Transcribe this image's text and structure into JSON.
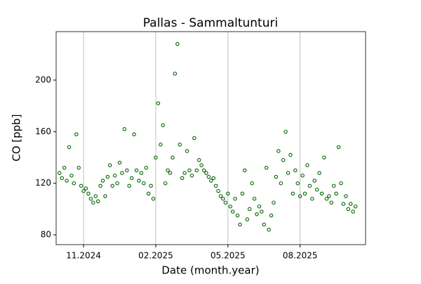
{
  "chart_data": {
    "type": "scatter",
    "title": "Pallas - Sammaltunturi",
    "x_label": "Date (month.year)",
    "y_label": "CO [ppb]",
    "series": [
      {
        "color": "#006400",
        "x": [
          -1.0,
          -0.9,
          -0.8,
          -0.7,
          -0.6,
          -0.5,
          -0.4,
          -0.3,
          -0.2,
          -0.1,
          0.0,
          0.1,
          0.2,
          0.3,
          0.4,
          0.5,
          0.6,
          0.7,
          0.8,
          0.9,
          1.0,
          1.1,
          1.2,
          1.3,
          1.4,
          1.5,
          1.6,
          1.7,
          1.8,
          1.9,
          2.0,
          2.1,
          2.2,
          2.3,
          2.4,
          2.5,
          2.6,
          2.7,
          2.8,
          2.9,
          3.0,
          3.1,
          3.2,
          3.3,
          3.4,
          3.5,
          3.6,
          3.7,
          3.8,
          3.9,
          4.0,
          4.1,
          4.2,
          4.3,
          4.4,
          4.5,
          4.6,
          4.7,
          4.8,
          4.9,
          5.0,
          5.1,
          5.2,
          5.3,
          5.4,
          5.5,
          5.6,
          5.7,
          5.8,
          5.9,
          6.0,
          6.1,
          6.2,
          6.3,
          6.4,
          6.5,
          6.6,
          6.7,
          6.8,
          6.9,
          7.0,
          7.1,
          7.2,
          7.3,
          7.4,
          7.5,
          7.6,
          7.7,
          7.8,
          7.9,
          8.0,
          8.1,
          8.2,
          8.3,
          8.4,
          8.5,
          8.6,
          8.7,
          8.8,
          8.9,
          9.0,
          9.1,
          9.2,
          9.3,
          9.4,
          9.5,
          9.6,
          9.7,
          9.8,
          9.9,
          10.0,
          10.1,
          10.2,
          10.3,
          10.4,
          10.5,
          10.6,
          10.7,
          10.8,
          10.9,
          11.0,
          11.1,
          11.2,
          11.3
        ],
        "values": [
          128,
          124,
          132,
          122,
          148,
          126,
          120,
          158,
          132,
          118,
          114,
          116,
          112,
          108,
          105,
          110,
          106,
          118,
          122,
          110,
          125,
          134,
          118,
          126,
          120,
          136,
          128,
          162,
          130,
          118,
          124,
          158,
          130,
          122,
          128,
          120,
          132,
          112,
          118,
          108,
          140,
          182,
          150,
          165,
          120,
          130,
          128,
          140,
          205,
          228,
          150,
          124,
          128,
          145,
          130,
          126,
          155,
          130,
          138,
          134,
          130,
          128,
          125,
          122,
          124,
          118,
          114,
          110,
          108,
          105,
          112,
          102,
          98,
          108,
          95,
          88,
          112,
          130,
          92,
          100,
          120,
          108,
          96,
          102,
          98,
          88,
          132,
          84,
          95,
          105,
          125,
          145,
          120,
          138,
          160,
          128,
          142,
          112,
          130,
          120,
          110,
          126,
          112,
          134,
          118,
          108,
          122,
          115,
          128,
          112,
          140,
          108,
          110,
          105,
          118,
          112,
          148,
          120,
          104,
          110,
          100,
          104,
          98,
          102
        ]
      }
    ],
    "xlim": [
      -1.14,
      11.72
    ],
    "xticks": [
      {
        "value": 0,
        "label": "11.2024"
      },
      {
        "value": 3,
        "label": "02.2025"
      },
      {
        "value": 6,
        "label": "05.2025"
      },
      {
        "value": 9,
        "label": "08.2025"
      }
    ],
    "ylim": [
      72.4,
      237.6
    ],
    "yticks": [
      80,
      120,
      160,
      200
    ],
    "grid": "x"
  }
}
